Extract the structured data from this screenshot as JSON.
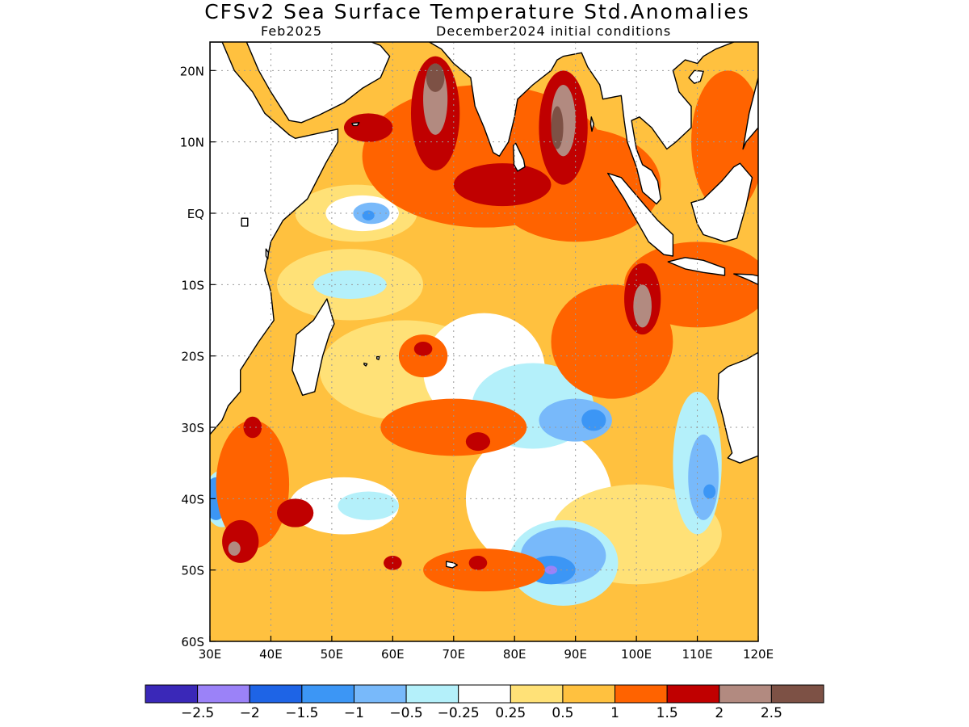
{
  "title": "CFSv2 Sea Surface Temperature Std.Anomalies",
  "subtitle_left": "Feb2025",
  "subtitle_right": "December2024 initial conditions",
  "map": {
    "lon_range": [
      30,
      120
    ],
    "lat_range": [
      -60,
      24
    ],
    "lon_ticks": [
      {
        "value": 30,
        "label": "30E"
      },
      {
        "value": 40,
        "label": "40E"
      },
      {
        "value": 50,
        "label": "50E"
      },
      {
        "value": 60,
        "label": "60E"
      },
      {
        "value": 70,
        "label": "70E"
      },
      {
        "value": 80,
        "label": "80E"
      },
      {
        "value": 90,
        "label": "90E"
      },
      {
        "value": 100,
        "label": "100E"
      },
      {
        "value": 110,
        "label": "110E"
      },
      {
        "value": 120,
        "label": "120E"
      }
    ],
    "lat_ticks": [
      {
        "value": 20,
        "label": "20N"
      },
      {
        "value": 10,
        "label": "10N"
      },
      {
        "value": 0,
        "label": "EQ"
      },
      {
        "value": -10,
        "label": "10S"
      },
      {
        "value": -20,
        "label": "20S"
      },
      {
        "value": -30,
        "label": "30S"
      },
      {
        "value": -40,
        "label": "40S"
      },
      {
        "value": -50,
        "label": "50S"
      },
      {
        "value": -60,
        "label": "60S"
      }
    ],
    "ocean_base_color": "#ffc13f",
    "land_color": "#ffffff",
    "coast_color": "#000000"
  },
  "colorbar": {
    "colors": [
      "#3a28b8",
      "#9b82f8",
      "#1e64e6",
      "#3c96f5",
      "#78b9fa",
      "#b4f0fa",
      "#ffffff",
      "#ffe177",
      "#ffc13f",
      "#ff6300",
      "#c00000",
      "#b28a80",
      "#7d5145"
    ],
    "labels": [
      "−2.5",
      "−2",
      "−1.5",
      "−1",
      "−0.5",
      "−0.25",
      "0.25",
      "0.5",
      "1",
      "1.5",
      "2",
      "2.5"
    ]
  },
  "anomaly_regions": [
    {
      "color": "#ffe177",
      "lon": 62,
      "lat": -22,
      "rx": 14,
      "ry": 7
    },
    {
      "color": "#ffffff",
      "lon": 75,
      "lat": -22,
      "rx": 10,
      "ry": 8
    },
    {
      "color": "#ffffff",
      "lon": 84,
      "lat": -40,
      "rx": 12,
      "ry": 10
    },
    {
      "color": "#ffe177",
      "lon": 100,
      "lat": -45,
      "rx": 14,
      "ry": 7
    },
    {
      "color": "#ffe177",
      "lon": 53,
      "lat": -10,
      "rx": 12,
      "ry": 5
    },
    {
      "color": "#ffe177",
      "lon": 54,
      "lat": 0,
      "rx": 10,
      "ry": 4
    },
    {
      "color": "#ffffff",
      "lon": 55,
      "lat": 0,
      "rx": 6,
      "ry": 2.5
    },
    {
      "color": "#78b9fa",
      "lon": 56.5,
      "lat": 0,
      "rx": 3,
      "ry": 1.5
    },
    {
      "color": "#3c96f5",
      "lon": 56,
      "lat": -0.3,
      "rx": 1,
      "ry": 0.7
    },
    {
      "color": "#b4f0fa",
      "lon": 53,
      "lat": -10,
      "rx": 6,
      "ry": 2
    },
    {
      "color": "#ffffff",
      "lon": 52,
      "lat": -41,
      "rx": 9,
      "ry": 4
    },
    {
      "color": "#b4f0fa",
      "lon": 56,
      "lat": -41,
      "rx": 5,
      "ry": 2
    },
    {
      "color": "#b4f0fa",
      "lon": 83,
      "lat": -27,
      "rx": 10,
      "ry": 6
    },
    {
      "color": "#78b9fa",
      "lon": 90,
      "lat": -29,
      "rx": 6,
      "ry": 3
    },
    {
      "color": "#3c96f5",
      "lon": 93,
      "lat": -29,
      "rx": 2,
      "ry": 1.5
    },
    {
      "color": "#b4f0fa",
      "lon": 88,
      "lat": -49,
      "rx": 9,
      "ry": 6
    },
    {
      "color": "#78b9fa",
      "lon": 88,
      "lat": -48,
      "rx": 7,
      "ry": 4
    },
    {
      "color": "#3c96f5",
      "lon": 86,
      "lat": -50,
      "rx": 4,
      "ry": 2
    },
    {
      "color": "#9b82f8",
      "lon": 86,
      "lat": -50,
      "rx": 1,
      "ry": 0.6
    },
    {
      "color": "#b4f0fa",
      "lon": 110,
      "lat": -35,
      "rx": 4,
      "ry": 10
    },
    {
      "color": "#78b9fa",
      "lon": 111,
      "lat": -37,
      "rx": 2.5,
      "ry": 6
    },
    {
      "color": "#3c96f5",
      "lon": 112,
      "lat": -39,
      "rx": 1,
      "ry": 1
    },
    {
      "color": "#b4f0fa",
      "lon": 32,
      "lat": -40,
      "rx": 3,
      "ry": 4
    },
    {
      "color": "#3c96f5",
      "lon": 31,
      "lat": -40,
      "rx": 2,
      "ry": 3
    },
    {
      "color": "#ff6300",
      "lon": 37,
      "lat": -38,
      "rx": 6,
      "ry": 9
    },
    {
      "color": "#c00000",
      "lon": 35,
      "lat": -46,
      "rx": 3,
      "ry": 3
    },
    {
      "color": "#b28a80",
      "lon": 34,
      "lat": -47,
      "rx": 1,
      "ry": 1
    },
    {
      "color": "#c00000",
      "lon": 44,
      "lat": -42,
      "rx": 3,
      "ry": 2
    },
    {
      "color": "#c00000",
      "lon": 37,
      "lat": -30,
      "rx": 1.5,
      "ry": 1.5
    },
    {
      "color": "#ff6300",
      "lon": 70,
      "lat": -30,
      "rx": 12,
      "ry": 4
    },
    {
      "color": "#c00000",
      "lon": 74,
      "lat": -32,
      "rx": 2,
      "ry": 1.3
    },
    {
      "color": "#ff6300",
      "lon": 65,
      "lat": -20,
      "rx": 4,
      "ry": 3
    },
    {
      "color": "#c00000",
      "lon": 65,
      "lat": -19,
      "rx": 1.5,
      "ry": 1
    },
    {
      "color": "#ff6300",
      "lon": 75,
      "lat": -50,
      "rx": 10,
      "ry": 3
    },
    {
      "color": "#c00000",
      "lon": 60,
      "lat": -49,
      "rx": 1.5,
      "ry": 1
    },
    {
      "color": "#c00000",
      "lon": 74,
      "lat": -49,
      "rx": 1.5,
      "ry": 1
    },
    {
      "color": "#ff6300",
      "lon": 96,
      "lat": -18,
      "rx": 10,
      "ry": 8
    },
    {
      "color": "#ff6300",
      "lon": 110,
      "lat": -10,
      "rx": 12,
      "ry": 6
    },
    {
      "color": "#c00000",
      "lon": 101,
      "lat": -12,
      "rx": 3,
      "ry": 5
    },
    {
      "color": "#b28a80",
      "lon": 101,
      "lat": -13,
      "rx": 1.5,
      "ry": 3
    },
    {
      "color": "#ff6300",
      "lon": 75,
      "lat": 8,
      "rx": 20,
      "ry": 10
    },
    {
      "color": "#ff6300",
      "lon": 90,
      "lat": 4,
      "rx": 14,
      "ry": 8
    },
    {
      "color": "#c00000",
      "lon": 78,
      "lat": 4,
      "rx": 8,
      "ry": 3
    },
    {
      "color": "#c00000",
      "lon": 67,
      "lat": 14,
      "rx": 4,
      "ry": 8
    },
    {
      "color": "#b28a80",
      "lon": 67,
      "lat": 16,
      "rx": 2,
      "ry": 5
    },
    {
      "color": "#7d5145",
      "lon": 67,
      "lat": 19,
      "rx": 1.5,
      "ry": 2
    },
    {
      "color": "#c00000",
      "lon": 88,
      "lat": 12,
      "rx": 4,
      "ry": 8
    },
    {
      "color": "#b28a80",
      "lon": 88,
      "lat": 13,
      "rx": 2,
      "ry": 5
    },
    {
      "color": "#7d5145",
      "lon": 87,
      "lat": 12,
      "rx": 1,
      "ry": 3
    },
    {
      "color": "#c00000",
      "lon": 56,
      "lat": 12,
      "rx": 4,
      "ry": 2
    },
    {
      "color": "#ff6300",
      "lon": 115,
      "lat": 10,
      "rx": 6,
      "ry": 10
    }
  ],
  "land_polygons": [
    {
      "name": "africa",
      "points": [
        [
          30,
          24
        ],
        [
          32,
          24
        ],
        [
          34,
          20
        ],
        [
          37,
          17
        ],
        [
          39,
          14
        ],
        [
          43,
          11
        ],
        [
          44,
          10.5
        ],
        [
          51,
          11.8
        ],
        [
          51,
          10
        ],
        [
          49,
          7
        ],
        [
          46,
          2
        ],
        [
          42,
          -1
        ],
        [
          40,
          -4
        ],
        [
          39,
          -8
        ],
        [
          40,
          -11
        ],
        [
          40.5,
          -15
        ],
        [
          38,
          -18
        ],
        [
          35,
          -22
        ],
        [
          35,
          -25
        ],
        [
          33,
          -27
        ],
        [
          32,
          -29
        ],
        [
          30,
          -31
        ],
        [
          30,
          24
        ]
      ]
    },
    {
      "name": "arabia",
      "points": [
        [
          36,
          24
        ],
        [
          38,
          20
        ],
        [
          40,
          17
        ],
        [
          43,
          13
        ],
        [
          45,
          12.7
        ],
        [
          48,
          13.8
        ],
        [
          52,
          15.5
        ],
        [
          55,
          17.5
        ],
        [
          58,
          19
        ],
        [
          59.5,
          22
        ],
        [
          58,
          23.5
        ],
        [
          56.5,
          24
        ],
        [
          36,
          24
        ]
      ]
    },
    {
      "name": "india",
      "points": [
        [
          66,
          24
        ],
        [
          68,
          23
        ],
        [
          70,
          21
        ],
        [
          72.8,
          19
        ],
        [
          73.5,
          15
        ],
        [
          75,
          12
        ],
        [
          76.5,
          8.5
        ],
        [
          77.5,
          8
        ],
        [
          79,
          10
        ],
        [
          80,
          13.5
        ],
        [
          80.5,
          16
        ],
        [
          83,
          18
        ],
        [
          86,
          20
        ],
        [
          87,
          21.5
        ],
        [
          88,
          22
        ],
        [
          91,
          22.5
        ],
        [
          92,
          20.5
        ],
        [
          94,
          18
        ],
        [
          94.5,
          16
        ],
        [
          97.5,
          16.5
        ],
        [
          98,
          13
        ],
        [
          98.5,
          10
        ],
        [
          100,
          6.5
        ],
        [
          101,
          3
        ],
        [
          103.3,
          1.3
        ],
        [
          104,
          2
        ],
        [
          103.5,
          4.5
        ],
        [
          102.5,
          6
        ],
        [
          101,
          6.8
        ],
        [
          100,
          9
        ],
        [
          99.2,
          13
        ],
        [
          100.5,
          13.5
        ],
        [
          102.5,
          12
        ],
        [
          105,
          9
        ],
        [
          106.5,
          10
        ],
        [
          109,
          12
        ],
        [
          109,
          15
        ],
        [
          107,
          17
        ],
        [
          106,
          20
        ],
        [
          108,
          21.5
        ],
        [
          110,
          21
        ],
        [
          111,
          22
        ],
        [
          113,
          23
        ],
        [
          116,
          24
        ],
        [
          66,
          24
        ]
      ]
    },
    {
      "name": "sri-lanka",
      "points": [
        [
          79.8,
          9.5
        ],
        [
          80.2,
          9.8
        ],
        [
          81.5,
          7.5
        ],
        [
          81.7,
          6.5
        ],
        [
          80.5,
          5.9
        ],
        [
          79.9,
          6.8
        ],
        [
          79.8,
          9.5
        ]
      ]
    },
    {
      "name": "madagascar",
      "points": [
        [
          49.2,
          -12
        ],
        [
          50.4,
          -15.5
        ],
        [
          49.6,
          -17
        ],
        [
          48.5,
          -20
        ],
        [
          47.2,
          -25
        ],
        [
          45.2,
          -25.5
        ],
        [
          43.5,
          -22
        ],
        [
          44.2,
          -17
        ],
        [
          47,
          -15
        ],
        [
          49.2,
          -12
        ]
      ]
    },
    {
      "name": "sumatra",
      "points": [
        [
          95.3,
          5.6
        ],
        [
          97.5,
          5
        ],
        [
          100.5,
          2
        ],
        [
          103.5,
          -1
        ],
        [
          106,
          -3
        ],
        [
          106,
          -6
        ],
        [
          104.5,
          -5.8
        ],
        [
          102,
          -4
        ],
        [
          100,
          -1
        ],
        [
          98,
          2
        ],
        [
          95.3,
          5.6
        ]
      ]
    },
    {
      "name": "java",
      "points": [
        [
          105.2,
          -6.8
        ],
        [
          108,
          -6.2
        ],
        [
          111,
          -6.6
        ],
        [
          114.5,
          -7.7
        ],
        [
          114.5,
          -8.7
        ],
        [
          111,
          -8.3
        ],
        [
          108,
          -7.8
        ],
        [
          105.2,
          -6.8
        ]
      ]
    },
    {
      "name": "borneo",
      "points": [
        [
          109,
          1.5
        ],
        [
          110,
          -1.5
        ],
        [
          111,
          -3
        ],
        [
          114.5,
          -4
        ],
        [
          116.5,
          -3.5
        ],
        [
          118,
          1
        ],
        [
          119,
          5
        ],
        [
          117,
          7
        ],
        [
          116,
          6.5
        ],
        [
          114,
          4.5
        ],
        [
          111,
          2
        ],
        [
          109,
          1.5
        ]
      ]
    },
    {
      "name": "sulawesi-lesser",
      "points": [
        [
          116,
          -8.5
        ],
        [
          119,
          -8.6
        ],
        [
          120,
          -8.8
        ],
        [
          120,
          -10
        ],
        [
          118,
          -9.2
        ],
        [
          116,
          -8.5
        ]
      ]
    },
    {
      "name": "philippines",
      "points": [
        [
          118,
          10
        ],
        [
          120,
          12
        ],
        [
          120,
          18
        ],
        [
          120,
          19
        ],
        [
          118.5,
          14
        ],
        [
          117.5,
          9
        ],
        [
          118,
          10
        ]
      ]
    },
    {
      "name": "hainan",
      "points": [
        [
          108.6,
          19
        ],
        [
          109.5,
          20
        ],
        [
          111,
          19.9
        ],
        [
          110.5,
          18.5
        ],
        [
          109.5,
          18.2
        ],
        [
          108.6,
          19
        ]
      ]
    },
    {
      "name": "australia",
      "points": [
        [
          120,
          -19.5
        ],
        [
          118,
          -20.5
        ],
        [
          115,
          -21.5
        ],
        [
          113.5,
          -22.5
        ],
        [
          113.4,
          -26
        ],
        [
          114.2,
          -28.5
        ],
        [
          115,
          -31.5
        ],
        [
          115.7,
          -33.6
        ],
        [
          115,
          -34.3
        ],
        [
          117,
          -35
        ],
        [
          120,
          -34
        ],
        [
          120,
          -19.5
        ]
      ]
    },
    {
      "name": "mauritius",
      "points": [
        [
          57.4,
          -20.1
        ],
        [
          57.8,
          -20.1
        ],
        [
          57.7,
          -20.5
        ],
        [
          57.4,
          -20.4
        ],
        [
          57.4,
          -20.1
        ]
      ]
    },
    {
      "name": "reunion",
      "points": [
        [
          55.3,
          -21
        ],
        [
          55.8,
          -21.1
        ],
        [
          55.6,
          -21.4
        ],
        [
          55.3,
          -21.2
        ],
        [
          55.3,
          -21
        ]
      ]
    },
    {
      "name": "kerguelen",
      "points": [
        [
          68.8,
          -48.8
        ],
        [
          70,
          -49
        ],
        [
          70.6,
          -49.3
        ],
        [
          69.8,
          -49.7
        ],
        [
          68.8,
          -49.5
        ],
        [
          68.8,
          -48.8
        ]
      ]
    },
    {
      "name": "socotra",
      "points": [
        [
          53.3,
          12.6
        ],
        [
          54.5,
          12.7
        ],
        [
          54.2,
          12.3
        ],
        [
          53.5,
          12.3
        ],
        [
          53.3,
          12.6
        ]
      ]
    },
    {
      "name": "andaman",
      "points": [
        [
          92.6,
          13.5
        ],
        [
          93,
          12.5
        ],
        [
          92.7,
          11.5
        ],
        [
          92.5,
          12.5
        ],
        [
          92.6,
          13.5
        ]
      ]
    },
    {
      "name": "pemba-zanzibar",
      "points": [
        [
          39.2,
          -5
        ],
        [
          39.6,
          -5.5
        ],
        [
          39.5,
          -6.4
        ],
        [
          39.2,
          -6
        ],
        [
          39.2,
          -5
        ]
      ]
    },
    {
      "name": "seychelles",
      "points": [
        [
          35.2,
          -0.7
        ],
        [
          36.2,
          -0.7
        ],
        [
          36.2,
          -1.8
        ],
        [
          35.2,
          -1.8
        ],
        [
          35.2,
          -0.7
        ]
      ]
    }
  ]
}
